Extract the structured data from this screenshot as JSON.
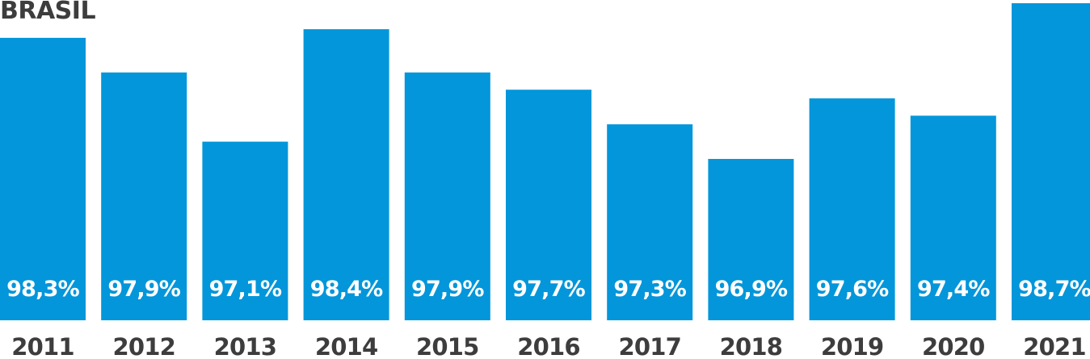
{
  "chart_data": {
    "type": "bar",
    "title": "BRASIL",
    "categories": [
      "2011",
      "2012",
      "2013",
      "2014",
      "2015",
      "2016",
      "2017",
      "2018",
      "2019",
      "2020",
      "2021"
    ],
    "values": [
      98.3,
      97.9,
      97.1,
      98.4,
      97.9,
      97.7,
      97.3,
      96.9,
      97.6,
      97.4,
      98.7
    ],
    "value_labels": [
      "98,3%",
      "97,9%",
      "97,1%",
      "98,4%",
      "97,9%",
      "97,7%",
      "97,3%",
      "96,9%",
      "97,6%",
      "97,4%",
      "98,7%"
    ],
    "bar_color": "#0396da",
    "label_color": "#ffffff",
    "tick_color": "#3d3d3d",
    "grid": false,
    "legend": "none"
  }
}
